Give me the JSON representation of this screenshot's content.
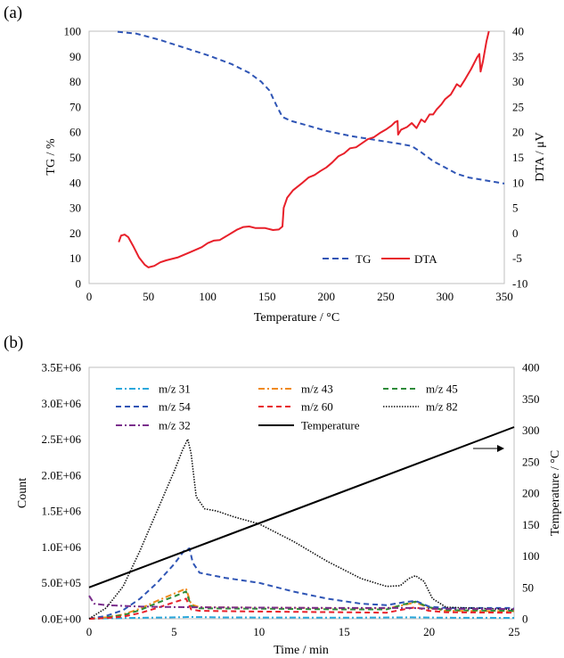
{
  "chart_data": [
    {
      "panel_label": "(a)",
      "type": "line",
      "xlabel": "Temperature / °C",
      "ylabel": "TG / %",
      "y2label": "DTA / μV",
      "xlim": [
        0,
        350
      ],
      "ylim": [
        0,
        100
      ],
      "y2lim": [
        -10,
        40
      ],
      "xticks": [
        0,
        50,
        100,
        150,
        200,
        250,
        300,
        350
      ],
      "yticks": [
        0,
        10,
        20,
        30,
        40,
        50,
        60,
        70,
        80,
        90,
        100
      ],
      "y2ticks": [
        -10,
        -5,
        0,
        5,
        10,
        15,
        20,
        25,
        30,
        35,
        40
      ],
      "legend_position": "bottom-right",
      "series": [
        {
          "name": "TG",
          "axis": "left",
          "style": "dashed",
          "color": "#2f55b5",
          "points": [
            [
              24,
              99.8
            ],
            [
              40,
              99.0
            ],
            [
              60,
              96.5
            ],
            [
              80,
              93.5
            ],
            [
              100,
              90.5
            ],
            [
              120,
              87.0
            ],
            [
              135,
              83.5
            ],
            [
              145,
              80.0
            ],
            [
              152,
              76.5
            ],
            [
              158,
              70.5
            ],
            [
              163,
              66.0
            ],
            [
              170,
              64.5
            ],
            [
              185,
              62.5
            ],
            [
              200,
              60.5
            ],
            [
              220,
              58.5
            ],
            [
              240,
              57.0
            ],
            [
              260,
              55.5
            ],
            [
              272,
              54.5
            ],
            [
              280,
              52.0
            ],
            [
              290,
              48.5
            ],
            [
              300,
              46.0
            ],
            [
              310,
              43.5
            ],
            [
              320,
              42.0
            ],
            [
              335,
              40.8
            ],
            [
              350,
              39.6
            ]
          ]
        },
        {
          "name": "DTA",
          "axis": "right",
          "style": "solid",
          "color": "#e8202a",
          "points": [
            [
              25,
              -1.8
            ],
            [
              27,
              -0.5
            ],
            [
              30,
              -0.3
            ],
            [
              33,
              -0.8
            ],
            [
              37,
              -2.5
            ],
            [
              42,
              -4.8
            ],
            [
              47,
              -6.3
            ],
            [
              50,
              -6.8
            ],
            [
              55,
              -6.5
            ],
            [
              60,
              -5.8
            ],
            [
              65,
              -5.4
            ],
            [
              75,
              -4.8
            ],
            [
              85,
              -3.8
            ],
            [
              95,
              -2.8
            ],
            [
              100,
              -2.0
            ],
            [
              105,
              -1.5
            ],
            [
              110,
              -1.4
            ],
            [
              115,
              -0.7
            ],
            [
              120,
              0.0
            ],
            [
              125,
              0.7
            ],
            [
              130,
              1.2
            ],
            [
              135,
              1.3
            ],
            [
              140,
              1.0
            ],
            [
              148,
              1.0
            ],
            [
              155,
              0.6
            ],
            [
              160,
              0.7
            ],
            [
              163,
              1.3
            ],
            [
              164,
              5.0
            ],
            [
              167,
              7.0
            ],
            [
              172,
              8.5
            ],
            [
              180,
              10.0
            ],
            [
              185,
              11.0
            ],
            [
              190,
              11.5
            ],
            [
              195,
              12.3
            ],
            [
              200,
              13.0
            ],
            [
              205,
              14.0
            ],
            [
              210,
              15.2
            ],
            [
              215,
              15.8
            ],
            [
              220,
              16.8
            ],
            [
              225,
              17.0
            ],
            [
              230,
              17.8
            ],
            [
              235,
              18.6
            ],
            [
              240,
              19.0
            ],
            [
              245,
              19.8
            ],
            [
              250,
              20.5
            ],
            [
              255,
              21.3
            ],
            [
              258,
              22.0
            ],
            [
              260,
              22.2
            ],
            [
              260.5,
              19.5
            ],
            [
              263,
              20.5
            ],
            [
              268,
              21.0
            ],
            [
              272,
              21.8
            ],
            [
              276,
              20.8
            ],
            [
              280,
              22.5
            ],
            [
              283,
              22.0
            ],
            [
              287,
              23.5
            ],
            [
              290,
              23.5
            ],
            [
              293,
              24.5
            ],
            [
              297,
              25.5
            ],
            [
              300,
              26.5
            ],
            [
              305,
              27.5
            ],
            [
              310,
              29.5
            ],
            [
              313,
              29.0
            ],
            [
              317,
              30.5
            ],
            [
              322,
              32.5
            ],
            [
              327,
              34.8
            ],
            [
              329,
              35.5
            ],
            [
              330,
              32.0
            ],
            [
              332,
              34.0
            ],
            [
              335,
              38.0
            ],
            [
              337,
              40.0
            ]
          ]
        }
      ]
    },
    {
      "panel_label": "(b)",
      "type": "line",
      "xlabel": "Time / min",
      "ylabel": "Count",
      "y2label": "Temperature / °C",
      "xlim": [
        0,
        25
      ],
      "ylim": [
        0,
        3500000
      ],
      "y2lim": [
        0,
        400
      ],
      "xticks": [
        0,
        5,
        10,
        15,
        20,
        25
      ],
      "yticks": [
        "0.0E+00",
        "5.0E+05",
        "1.0E+06",
        "1.5E+06",
        "2.0E+06",
        "2.5E+06",
        "3.0E+06",
        "3.5E+06"
      ],
      "y2ticks": [
        0,
        50,
        100,
        150,
        200,
        250,
        300,
        350,
        400
      ],
      "legend_position": "top",
      "series": [
        {
          "name": "m/z 31",
          "axis": "left",
          "style": "dashdot",
          "color": "#2aa8dc",
          "points": [
            [
              0,
              0
            ],
            [
              2,
              10000
            ],
            [
              5,
              20000
            ],
            [
              6,
              25000
            ],
            [
              8,
              18000
            ],
            [
              15,
              15000
            ],
            [
              19,
              20000
            ],
            [
              21,
              15000
            ],
            [
              25,
              13000
            ]
          ]
        },
        {
          "name": "m/z 43",
          "axis": "left",
          "style": "dashdot",
          "color": "#f08a1c",
          "points": [
            [
              0,
              0
            ],
            [
              1,
              20000
            ],
            [
              2,
              60000
            ],
            [
              3,
              140000
            ],
            [
              4,
              250000
            ],
            [
              5,
              350000
            ],
            [
              5.7,
              420000
            ],
            [
              6.0,
              200000
            ],
            [
              6.5,
              160000
            ],
            [
              10,
              155000
            ],
            [
              15,
              145000
            ],
            [
              17.5,
              145000
            ],
            [
              18.5,
              190000
            ],
            [
              19.2,
              230000
            ],
            [
              20,
              150000
            ],
            [
              21,
              110000
            ],
            [
              25,
              105000
            ]
          ]
        },
        {
          "name": "m/z 45",
          "axis": "left",
          "style": "dashed",
          "color": "#2e8b3a",
          "points": [
            [
              0,
              0
            ],
            [
              1,
              20000
            ],
            [
              2,
              50000
            ],
            [
              3,
              120000
            ],
            [
              4,
              220000
            ],
            [
              5,
              310000
            ],
            [
              5.7,
              380000
            ],
            [
              6.0,
              180000
            ],
            [
              6.5,
              145000
            ],
            [
              10,
              140000
            ],
            [
              15,
              130000
            ],
            [
              17.5,
              130000
            ],
            [
              18.5,
              200000
            ],
            [
              19.2,
              240000
            ],
            [
              20,
              160000
            ],
            [
              21,
              120000
            ],
            [
              25,
              110000
            ]
          ]
        },
        {
          "name": "m/z 54",
          "axis": "left",
          "style": "dashed",
          "color": "#2f55b5",
          "points": [
            [
              0,
              0
            ],
            [
              1,
              40000
            ],
            [
              2,
              120000
            ],
            [
              3,
              280000
            ],
            [
              4,
              500000
            ],
            [
              5,
              760000
            ],
            [
              5.6,
              950000
            ],
            [
              5.9,
              980000
            ],
            [
              6.1,
              780000
            ],
            [
              6.5,
              640000
            ],
            [
              8,
              570000
            ],
            [
              10,
              500000
            ],
            [
              12,
              380000
            ],
            [
              14,
              280000
            ],
            [
              16,
              210000
            ],
            [
              17.5,
              190000
            ],
            [
              18.5,
              230000
            ],
            [
              19.2,
              250000
            ],
            [
              20,
              170000
            ],
            [
              21,
              150000
            ],
            [
              25,
              150000
            ]
          ]
        },
        {
          "name": "m/z 60",
          "axis": "left",
          "style": "dashed",
          "color": "#e8202a",
          "points": [
            [
              0,
              0
            ],
            [
              1,
              10000
            ],
            [
              2,
              30000
            ],
            [
              3,
              80000
            ],
            [
              4,
              150000
            ],
            [
              5,
              230000
            ],
            [
              5.7,
              280000
            ],
            [
              6.0,
              130000
            ],
            [
              6.5,
              110000
            ],
            [
              10,
              100000
            ],
            [
              15,
              90000
            ],
            [
              17.5,
              85000
            ],
            [
              18.5,
              130000
            ],
            [
              19.2,
              160000
            ],
            [
              20,
              110000
            ],
            [
              21,
              90000
            ],
            [
              25,
              85000
            ]
          ]
        },
        {
          "name": "m/z 82",
          "axis": "left",
          "style": "dotted",
          "color": "#111111",
          "points": [
            [
              0,
              0
            ],
            [
              1,
              150000
            ],
            [
              2,
              450000
            ],
            [
              3,
              950000
            ],
            [
              4,
              1500000
            ],
            [
              5,
              2050000
            ],
            [
              5.5,
              2350000
            ],
            [
              5.8,
              2500000
            ],
            [
              6.0,
              2300000
            ],
            [
              6.3,
              1700000
            ],
            [
              6.8,
              1530000
            ],
            [
              7.5,
              1500000
            ],
            [
              8.5,
              1420000
            ],
            [
              10,
              1320000
            ],
            [
              12,
              1080000
            ],
            [
              14,
              800000
            ],
            [
              16,
              560000
            ],
            [
              17.5,
              450000
            ],
            [
              18.3,
              460000
            ],
            [
              18.8,
              560000
            ],
            [
              19.2,
              600000
            ],
            [
              19.7,
              520000
            ],
            [
              20.2,
              280000
            ],
            [
              21,
              160000
            ],
            [
              25,
              130000
            ]
          ]
        },
        {
          "name": "m/z 32",
          "axis": "left",
          "style": "dashdot",
          "color": "#7a2e8c",
          "points": [
            [
              0,
              320000
            ],
            [
              0.3,
              210000
            ],
            [
              1,
              190000
            ],
            [
              3,
              170000
            ],
            [
              6,
              160000
            ],
            [
              10,
              155000
            ],
            [
              15,
              150000
            ],
            [
              19,
              150000
            ],
            [
              20,
              140000
            ],
            [
              25,
              135000
            ]
          ]
        },
        {
          "name": "Temperature",
          "axis": "right",
          "style": "solid",
          "color": "#000000",
          "points": [
            [
              0,
              50
            ],
            [
              25,
              305
            ]
          ]
        }
      ]
    }
  ]
}
